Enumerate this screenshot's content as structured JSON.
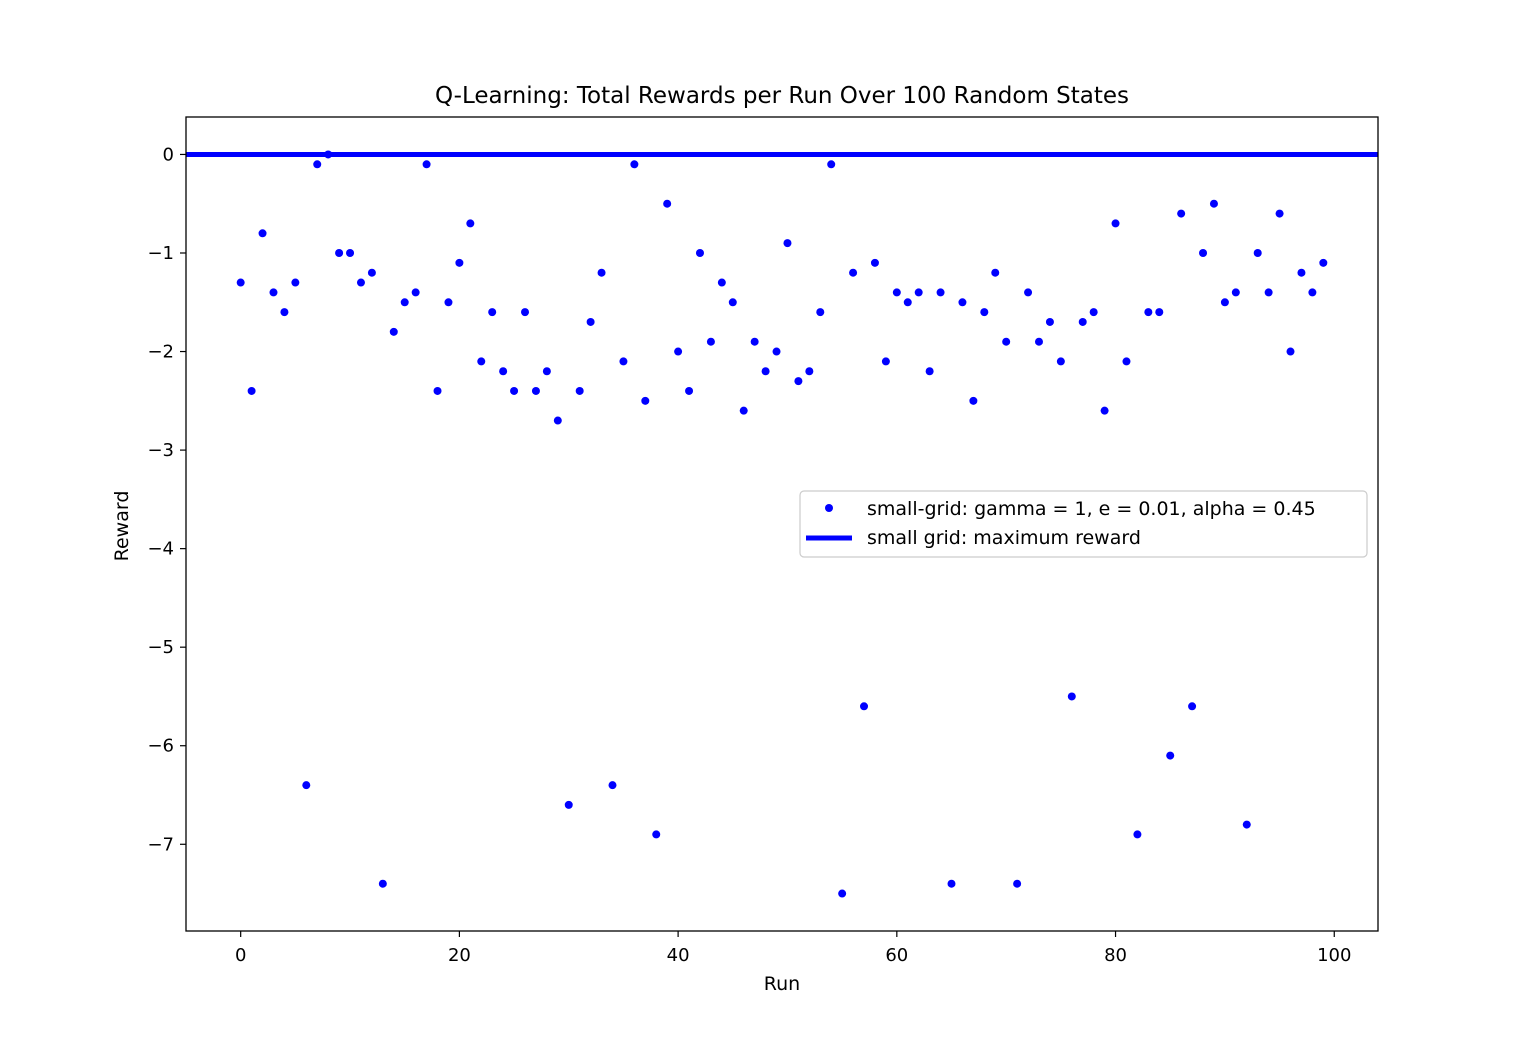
{
  "chart_data": {
    "type": "scatter",
    "title": "Q-Learning: Total Rewards per Run Over 100 Random States",
    "xlabel": "Run",
    "ylabel": "Reward",
    "xlim": [
      -5,
      104
    ],
    "ylim": [
      -7.88,
      0.38
    ],
    "xticks": [
      0,
      20,
      40,
      60,
      80,
      100
    ],
    "xtick_labels": [
      "0",
      "20",
      "40",
      "60",
      "80",
      "100"
    ],
    "yticks": [
      0,
      -1,
      -2,
      -3,
      -4,
      -5,
      -6,
      -7
    ],
    "ytick_labels": [
      "0",
      "−1",
      "−2",
      "−3",
      "−4",
      "−5",
      "−6",
      "−7"
    ],
    "grid": false,
    "legend_position": "center-right",
    "series": [
      {
        "name": "small-grid: gamma = 1, e = 0.01, alpha = 0.45",
        "kind": "scatter",
        "color": "#0000ff",
        "x": [
          0,
          1,
          2,
          3,
          4,
          5,
          6,
          7,
          8,
          9,
          10,
          11,
          12,
          13,
          14,
          15,
          16,
          17,
          18,
          19,
          20,
          21,
          22,
          23,
          24,
          25,
          26,
          27,
          28,
          29,
          30,
          31,
          32,
          33,
          34,
          35,
          36,
          37,
          38,
          39,
          40,
          41,
          42,
          43,
          44,
          45,
          46,
          47,
          48,
          49,
          50,
          51,
          52,
          53,
          54,
          55,
          56,
          57,
          58,
          59,
          60,
          61,
          62,
          63,
          64,
          65,
          66,
          67,
          68,
          69,
          70,
          71,
          72,
          73,
          74,
          75,
          76,
          77,
          78,
          79,
          80,
          81,
          82,
          83,
          84,
          85,
          86,
          87,
          88,
          89,
          90,
          91,
          92,
          93,
          94,
          95,
          96,
          97,
          98,
          99
        ],
        "y": [
          -1.3,
          -2.4,
          -0.8,
          -1.4,
          -1.6,
          -1.3,
          -6.4,
          -0.1,
          0.0,
          -1.0,
          -1.0,
          -1.3,
          -1.2,
          -7.4,
          -1.8,
          -1.5,
          -1.4,
          -0.1,
          -2.4,
          -1.5,
          -1.1,
          -0.7,
          -2.1,
          -1.6,
          -2.2,
          -2.4,
          -1.6,
          -2.4,
          -2.2,
          -2.7,
          -6.6,
          -2.4,
          -1.7,
          -1.2,
          -6.4,
          -2.1,
          -0.1,
          -2.5,
          -6.9,
          -0.5,
          -2.0,
          -2.4,
          -1.0,
          -1.9,
          -1.3,
          -1.5,
          -2.6,
          -1.9,
          -2.2,
          -2.0,
          -0.9,
          -2.3,
          -2.2,
          -1.6,
          -0.1,
          -7.5,
          -1.2,
          -5.6,
          -1.1,
          -2.1,
          -1.4,
          -1.5,
          -1.4,
          -2.2,
          -1.4,
          -7.4,
          -1.5,
          -2.5,
          -1.6,
          -1.2,
          -1.9,
          -7.4,
          -1.4,
          -1.9,
          -1.7,
          -2.1,
          -5.5,
          -1.7,
          -1.6,
          -2.6,
          -0.7,
          -2.1,
          -6.9,
          -1.6,
          -1.6,
          -6.1,
          -0.6,
          -5.6,
          -1.0,
          -0.5,
          -1.5,
          -1.4,
          -6.8,
          -1.0,
          -1.4,
          -0.6,
          -2.0,
          -1.2,
          -1.4,
          -1.1
        ]
      },
      {
        "name": "small grid: maximum reward",
        "kind": "hline",
        "color": "#0000ff",
        "y": 0
      }
    ]
  }
}
